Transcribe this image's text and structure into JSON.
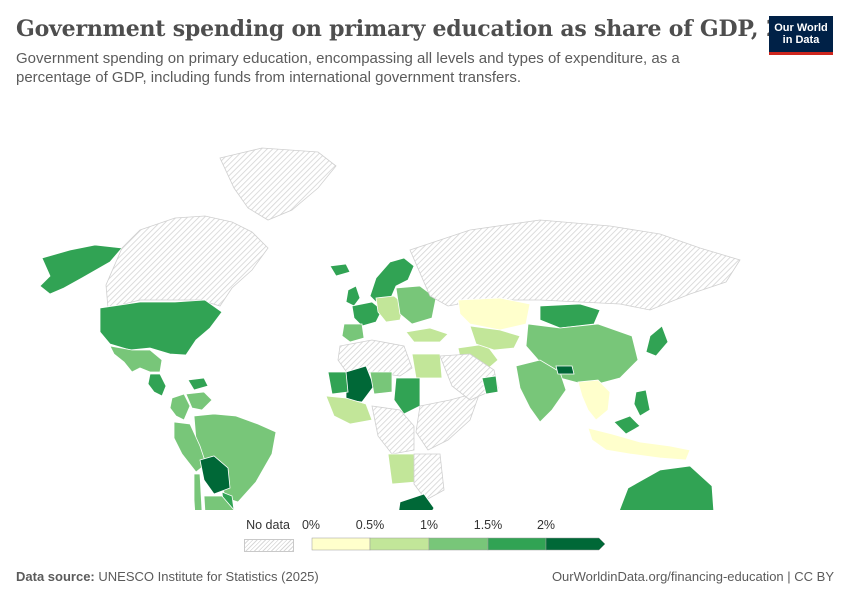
{
  "header": {
    "title": "Government spending on primary education as share of GDP, 2024",
    "subtitle": "Government spending on primary education, encompassing all levels and types of expenditure, as a percentage of GDP, including funds from international government transfers."
  },
  "logo": {
    "line1": "Our World",
    "line2": "in Data"
  },
  "legend": {
    "no_data_label": "No data",
    "bins": [
      {
        "label": "0%",
        "color": "#ffffcc"
      },
      {
        "label": "0.5%",
        "color": "#c2e699"
      },
      {
        "label": "1%",
        "color": "#78c679"
      },
      {
        "label": "1.5%",
        "color": "#31a354"
      },
      {
        "label": "2%",
        "color": "#006837"
      }
    ]
  },
  "colors": {
    "no_data": "#e6e6e6",
    "c0": "#ffffcc",
    "c1": "#c2e699",
    "c2": "#78c679",
    "c3": "#31a354",
    "c4": "#006837"
  },
  "regions": [
    {
      "name": "Alaska",
      "bin": 3
    },
    {
      "name": "Greenland",
      "bin": -1
    },
    {
      "name": "Canada",
      "bin": -1
    },
    {
      "name": "United States",
      "bin": 3
    },
    {
      "name": "Mexico",
      "bin": 2
    },
    {
      "name": "Central America",
      "bin": 3
    },
    {
      "name": "Caribbean",
      "bin": 3
    },
    {
      "name": "Colombia",
      "bin": 2
    },
    {
      "name": "Venezuela",
      "bin": 2
    },
    {
      "name": "Brazil",
      "bin": 2
    },
    {
      "name": "Peru",
      "bin": 2
    },
    {
      "name": "Bolivia",
      "bin": 4
    },
    {
      "name": "Paraguay",
      "bin": 3
    },
    {
      "name": "Chile",
      "bin": 2
    },
    {
      "name": "Argentina",
      "bin": 2
    },
    {
      "name": "Uruguay",
      "bin": 1
    },
    {
      "name": "Iceland",
      "bin": 3
    },
    {
      "name": "Scandinavia",
      "bin": 3
    },
    {
      "name": "United Kingdom",
      "bin": 3
    },
    {
      "name": "Western Europe",
      "bin": 3
    },
    {
      "name": "Iberia",
      "bin": 2
    },
    {
      "name": "Central Europe",
      "bin": 1
    },
    {
      "name": "Eastern Europe",
      "bin": 2
    },
    {
      "name": "Russia",
      "bin": -1
    },
    {
      "name": "Turkey",
      "bin": 1
    },
    {
      "name": "Kazakhstan",
      "bin": 0
    },
    {
      "name": "Mongolia",
      "bin": 3
    },
    {
      "name": "China",
      "bin": 2
    },
    {
      "name": "Japan",
      "bin": 3
    },
    {
      "name": "Iran",
      "bin": 1
    },
    {
      "name": "Central Asia",
      "bin": 1
    },
    {
      "name": "India",
      "bin": 2
    },
    {
      "name": "Nepal",
      "bin": 4
    },
    {
      "name": "Southeast Asia",
      "bin": 0
    },
    {
      "name": "Philippines",
      "bin": 3
    },
    {
      "name": "Indonesia",
      "bin": 0
    },
    {
      "name": "Malaysia",
      "bin": 3
    },
    {
      "name": "Australia",
      "bin": 3
    },
    {
      "name": "New Zealand",
      "bin": 3
    },
    {
      "name": "North Africa",
      "bin": -1
    },
    {
      "name": "Egypt",
      "bin": 1
    },
    {
      "name": "Mali",
      "bin": 4
    },
    {
      "name": "Niger",
      "bin": 2
    },
    {
      "name": "Mauritania",
      "bin": 3
    },
    {
      "name": "West Africa",
      "bin": 1
    },
    {
      "name": "Sudan",
      "bin": 3
    },
    {
      "name": "Central Africa",
      "bin": -1
    },
    {
      "name": "East Africa",
      "bin": -1
    },
    {
      "name": "Angola",
      "bin": 1
    },
    {
      "name": "Southern Africa",
      "bin": -1
    },
    {
      "name": "South Africa",
      "bin": 4
    },
    {
      "name": "Arabian Peninsula",
      "bin": -1
    },
    {
      "name": "Oman",
      "bin": 3
    }
  ],
  "footer": {
    "source_label": "Data source:",
    "source_text": "UNESCO Institute for Statistics (2025)",
    "url": "OurWorldinData.org/financing-education | CC BY"
  }
}
